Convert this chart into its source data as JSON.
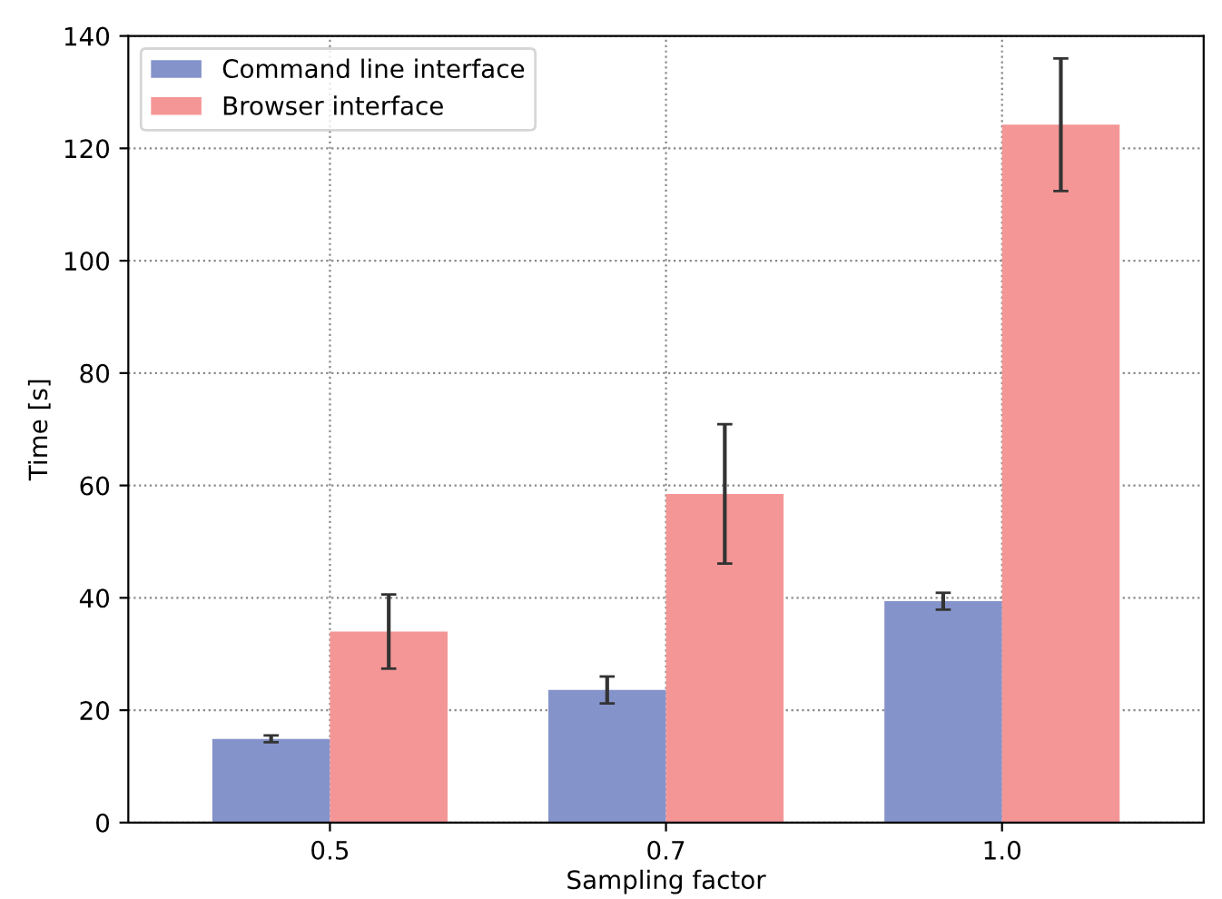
{
  "chart_data": {
    "type": "bar",
    "xlabel": "Sampling factor",
    "ylabel": "Time [s]",
    "categories": [
      "0.5",
      "0.7",
      "1.0"
    ],
    "series": [
      {
        "name": "Command line interface",
        "color": "#8593cb",
        "values": [
          14.9,
          23.6,
          39.4
        ],
        "errors": [
          0.6,
          2.4,
          1.5
        ]
      },
      {
        "name": "Browser interface",
        "color": "#f59696",
        "values": [
          34,
          58.5,
          124.2
        ],
        "errors": [
          6.6,
          12.4,
          11.8
        ]
      }
    ],
    "ylim": [
      0,
      140
    ],
    "yticks": [
      0,
      20,
      40,
      60,
      80,
      100,
      120,
      140
    ],
    "grid": true,
    "legend": "top left"
  }
}
